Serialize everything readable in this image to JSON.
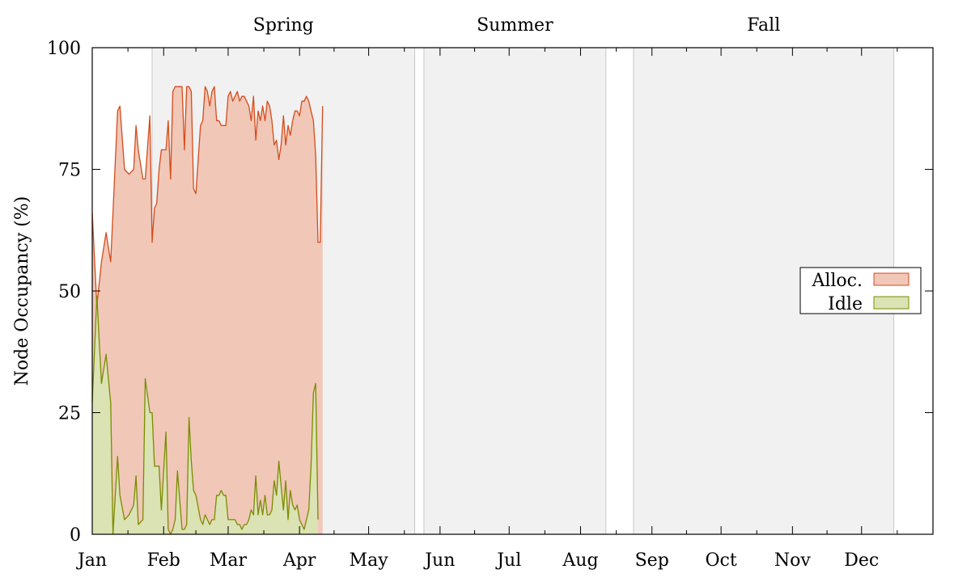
{
  "chart_data": {
    "type": "area",
    "title": "",
    "xlabel": "",
    "ylabel": "Node Occupancy (%)",
    "ylim": [
      0,
      100
    ],
    "xlim": [
      1,
      366
    ],
    "y_ticks": [
      0,
      25,
      50,
      75,
      100
    ],
    "y_tick_labels": [
      "0",
      "25",
      "50",
      "75",
      "100"
    ],
    "month_ticks": [
      {
        "label": "Jan",
        "day": 1
      },
      {
        "label": "Feb",
        "day": 32
      },
      {
        "label": "Mar",
        "day": 60
      },
      {
        "label": "Apr",
        "day": 91
      },
      {
        "label": "May",
        "day": 121
      },
      {
        "label": "Jun",
        "day": 152
      },
      {
        "label": "Jul",
        "day": 182
      },
      {
        "label": "Aug",
        "day": 213
      },
      {
        "label": "Sep",
        "day": 244
      },
      {
        "label": "Oct",
        "day": 274
      },
      {
        "label": "Nov",
        "day": 305
      },
      {
        "label": "Dec",
        "day": 335
      }
    ],
    "seasons": [
      {
        "label": "Spring",
        "start_day": 27,
        "end_day": 141
      },
      {
        "label": "Summer",
        "start_day": 145,
        "end_day": 224
      },
      {
        "label": "Fall",
        "start_day": 236,
        "end_day": 349
      }
    ],
    "legend": {
      "position": "right"
    },
    "grid": false,
    "series": [
      {
        "name": "Alloc.",
        "color": "#d44d1b",
        "fill": "#f1c7b8",
        "x": [
          1,
          3,
          5,
          7,
          9,
          10,
          12,
          13,
          15,
          17,
          19,
          20,
          21,
          23,
          24,
          26,
          27,
          28,
          29,
          30,
          31,
          33,
          34,
          35,
          36,
          37,
          38,
          40,
          41,
          42,
          43,
          44,
          45,
          46,
          48,
          49,
          50,
          51,
          52,
          53,
          54,
          55,
          56,
          57,
          58,
          59,
          60,
          61,
          62,
          63,
          64,
          65,
          66,
          67,
          68,
          69,
          70,
          71,
          72,
          73,
          74,
          75,
          76,
          77,
          78,
          79,
          80,
          81,
          82,
          83,
          84,
          85,
          86,
          87,
          88,
          89,
          90,
          91,
          92,
          93,
          94,
          95,
          96,
          97,
          98,
          99,
          100,
          101,
          102,
          103,
          104,
          105,
          106,
          107,
          108,
          109,
          110,
          111,
          112,
          113,
          114,
          115,
          116,
          117,
          118,
          119,
          120,
          121
        ],
        "values": [
          66,
          47,
          56,
          62,
          56,
          66,
          87,
          88,
          75,
          74,
          75,
          84,
          79,
          73,
          73,
          86,
          60,
          67,
          68,
          75,
          79,
          79,
          85,
          73,
          91,
          92,
          92,
          92,
          79,
          92,
          92,
          91,
          71,
          70,
          84,
          85,
          92,
          91,
          88,
          91,
          92,
          85,
          85,
          84,
          84,
          84,
          90,
          91,
          89,
          90,
          91,
          89,
          90,
          90,
          89,
          88,
          85,
          90,
          81,
          87,
          85,
          88,
          85,
          89,
          88,
          85,
          80,
          81,
          77,
          80,
          86,
          80,
          84,
          82,
          85,
          87,
          87,
          86,
          89,
          89,
          90,
          89,
          87,
          85,
          78,
          60,
          60,
          88,
          null,
          null,
          null,
          null,
          null,
          null,
          null,
          null,
          null,
          null,
          null,
          null,
          null,
          null,
          null,
          null,
          null,
          null,
          null,
          null
        ]
      },
      {
        "name": "Idle",
        "color": "#7a8c00",
        "fill": "#dbe2b4",
        "x": [
          1,
          3,
          5,
          7,
          9,
          10,
          12,
          13,
          15,
          17,
          19,
          20,
          21,
          23,
          24,
          26,
          27,
          28,
          29,
          30,
          31,
          33,
          34,
          35,
          36,
          37,
          38,
          40,
          41,
          42,
          43,
          44,
          45,
          46,
          48,
          49,
          50,
          51,
          52,
          53,
          54,
          55,
          56,
          57,
          58,
          59,
          60,
          61,
          62,
          63,
          64,
          65,
          66,
          67,
          68,
          69,
          70,
          71,
          72,
          73,
          74,
          75,
          76,
          77,
          78,
          79,
          80,
          81,
          82,
          83,
          84,
          85,
          86,
          87,
          88,
          89,
          90,
          91,
          92,
          93,
          94,
          95,
          96,
          97,
          98,
          99,
          100,
          101,
          102,
          103,
          104,
          105,
          106,
          107,
          108,
          109,
          110,
          111,
          112,
          113,
          114,
          115,
          116,
          117,
          118,
          119,
          120,
          121
        ],
        "values": [
          27,
          49,
          31,
          37,
          27,
          0,
          16,
          8,
          3,
          4,
          6,
          12,
          2,
          3,
          32,
          25,
          25,
          14,
          14,
          14,
          5,
          21,
          1,
          0,
          1,
          3,
          13,
          1,
          1,
          2,
          24,
          15,
          9,
          8,
          3,
          2,
          4,
          3,
          2,
          3,
          3,
          8,
          8,
          9,
          8,
          8,
          3,
          3,
          3,
          3,
          2,
          2,
          1,
          2,
          2,
          3,
          5,
          4,
          12,
          4,
          7,
          4,
          8,
          4,
          4,
          5,
          11,
          8,
          15,
          10,
          5,
          11,
          3,
          9,
          6,
          5,
          6,
          3,
          2,
          1,
          3,
          5,
          14,
          29,
          31,
          3,
          null,
          null,
          null,
          null,
          null,
          null,
          null,
          null,
          null,
          null,
          null,
          null,
          null,
          null,
          null,
          null,
          null,
          null,
          null,
          null,
          null,
          null
        ]
      }
    ]
  }
}
